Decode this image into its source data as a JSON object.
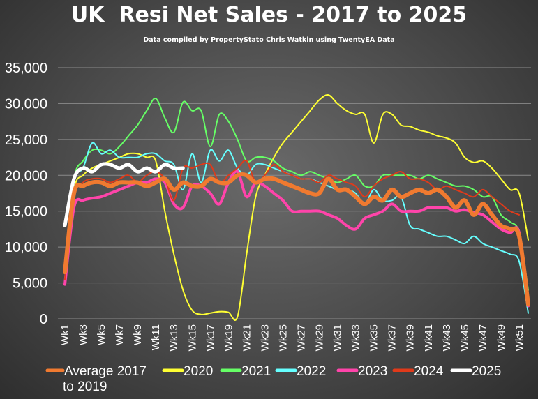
{
  "chart_data": {
    "type": "line",
    "title": "UK  Resi Net Sales - 2017 to 2025",
    "subtitle": "Data compiled by PropertyStato Chris Watkin using TwentyEA Data",
    "xlabel": "",
    "ylabel": "",
    "ylim": [
      0,
      35000
    ],
    "yticks": [
      "0",
      "5,000",
      "10,000",
      "15,000",
      "20,000",
      "25,000",
      "30,000",
      "35,000"
    ],
    "grid": true,
    "legend_position": "bottom",
    "week_count": 52,
    "x_tick_labels": [
      "Wk1",
      "Wk3",
      "Wk5",
      "Wk7",
      "Wk9",
      "Wk11",
      "Wk13",
      "Wk15",
      "Wk17",
      "Wk19",
      "Wk21",
      "Wk23",
      "Wk25",
      "Wk27",
      "Wk29",
      "Wk31",
      "Wk33",
      "Wk35",
      "Wk37",
      "Wk39",
      "Wk41",
      "Wk43",
      "Wk45",
      "Wk47",
      "Wk49",
      "Wk51"
    ],
    "series": [
      {
        "name": "2020",
        "color": "#ffff33",
        "stroke_width": 2,
        "values": [
          6500,
          18000,
          20000,
          21000,
          21500,
          22000,
          22500,
          23000,
          23000,
          22500,
          22000,
          15000,
          9000,
          4000,
          1200,
          600,
          800,
          1000,
          900,
          300,
          9000,
          17000,
          20000,
          22500,
          24500,
          26000,
          27500,
          29000,
          30500,
          31200,
          30000,
          29000,
          28500,
          28500,
          24500,
          28500,
          28500,
          27000,
          26800,
          26300,
          26000,
          25500,
          25200,
          24500,
          22500,
          21800,
          22000,
          21000,
          19500,
          18000,
          17500,
          11000
        ]
      },
      {
        "name": "2021",
        "color": "#66ff66",
        "stroke_width": 2,
        "values": [
          7500,
          19500,
          22000,
          23500,
          23500,
          23000,
          24000,
          25500,
          27000,
          29000,
          30700,
          28000,
          26000,
          30200,
          29000,
          29000,
          24000,
          28500,
          27500,
          25000,
          22000,
          22500,
          22500,
          22000,
          21000,
          20500,
          20000,
          20500,
          20000,
          19500,
          19000,
          19500,
          20000,
          18500,
          18500,
          20000,
          20000,
          20000,
          20000,
          19500,
          20000,
          19500,
          19000,
          18500,
          18500,
          18000,
          17000,
          17000,
          14500,
          13500,
          12000,
          4000
        ]
      },
      {
        "name": "2022",
        "color": "#66ffff",
        "stroke_width": 2,
        "values": [
          7000,
          19000,
          21000,
          24500,
          23000,
          23500,
          22500,
          22500,
          22500,
          23000,
          23000,
          22000,
          21500,
          18000,
          23000,
          19000,
          23500,
          22000,
          23500,
          21000,
          20000,
          21500,
          21500,
          21000,
          20500,
          20000,
          19500,
          19500,
          19000,
          18500,
          18000,
          18000,
          17500,
          16000,
          18000,
          16500,
          16500,
          17000,
          13000,
          12500,
          12000,
          11500,
          11500,
          11000,
          10500,
          11500,
          10500,
          10000,
          9500,
          9000,
          8000,
          800
        ]
      },
      {
        "name": "2023",
        "color": "#ff44aa",
        "stroke_width": 4,
        "values": [
          4800,
          15500,
          16500,
          16800,
          17000,
          17500,
          18000,
          18500,
          19000,
          19000,
          19500,
          19000,
          16000,
          15500,
          18500,
          18500,
          17500,
          16000,
          19000,
          20500,
          17000,
          19000,
          18500,
          17500,
          16500,
          15000,
          15000,
          15000,
          15000,
          14500,
          14000,
          13000,
          12500,
          14000,
          14500,
          15000,
          16000,
          15000,
          15000,
          15000,
          15500,
          15500,
          15500,
          15000,
          15200,
          14800,
          14500,
          13500,
          12500,
          12000,
          12000,
          1800
        ]
      },
      {
        "name": "2024",
        "color": "#e03a1a",
        "stroke_width": 2,
        "values": [
          5500,
          17000,
          19000,
          19500,
          19500,
          19000,
          19500,
          20000,
          19000,
          20000,
          20500,
          19500,
          16500,
          21000,
          21000,
          21500,
          21500,
          19000,
          20000,
          21000,
          22000,
          19000,
          20000,
          21500,
          20500,
          20000,
          19500,
          19500,
          19000,
          20000,
          19500,
          19000,
          18500,
          17000,
          18500,
          19500,
          20000,
          20500,
          19500,
          19500,
          19000,
          18000,
          18500,
          18000,
          17500,
          17000,
          18000,
          17000,
          16000,
          15000,
          14500,
          null
        ]
      },
      {
        "name": "2025",
        "color": "#ffffff",
        "stroke_width": 5,
        "values": [
          13000,
          19500,
          21000,
          20500,
          21500,
          21500,
          21000,
          21500,
          20500,
          21000,
          20500,
          21500,
          21000,
          21000,
          null,
          null,
          null,
          null,
          null,
          null,
          null,
          null,
          null,
          null,
          null,
          null,
          null,
          null,
          null,
          null,
          null,
          null,
          null,
          null,
          null,
          null,
          null,
          null,
          null,
          null,
          null,
          null,
          null,
          null,
          null,
          null,
          null,
          null,
          null,
          null,
          null,
          null
        ]
      },
      {
        "name": "Average 2017 to 2019",
        "color": "#f07a30",
        "stroke_width": 6,
        "values": [
          6500,
          17500,
          18500,
          19000,
          19000,
          18500,
          19000,
          19000,
          19000,
          18500,
          19000,
          19500,
          18000,
          19000,
          18500,
          18500,
          19500,
          19000,
          19000,
          20000,
          20000,
          19000,
          19500,
          19500,
          19000,
          18500,
          18000,
          17500,
          17500,
          19500,
          18000,
          18000,
          17000,
          16000,
          17000,
          16500,
          18000,
          17000,
          17500,
          18000,
          17500,
          18000,
          17000,
          15500,
          16500,
          14500,
          16000,
          14500,
          13000,
          12500,
          11500,
          2000
        ]
      }
    ]
  },
  "legend": [
    {
      "label_line1": "Average 2017",
      "label_line2": "to 2019",
      "color": "#f07a30"
    },
    {
      "label_line1": "2020",
      "label_line2": "",
      "color": "#ffff33"
    },
    {
      "label_line1": "2021",
      "label_line2": "",
      "color": "#66ff66"
    },
    {
      "label_line1": "2022",
      "label_line2": "",
      "color": "#66ffff"
    },
    {
      "label_line1": "2023",
      "label_line2": "",
      "color": "#ff44aa"
    },
    {
      "label_line1": "2024",
      "label_line2": "",
      "color": "#e03a1a"
    },
    {
      "label_line1": "2025",
      "label_line2": "",
      "color": "#ffffff"
    }
  ]
}
